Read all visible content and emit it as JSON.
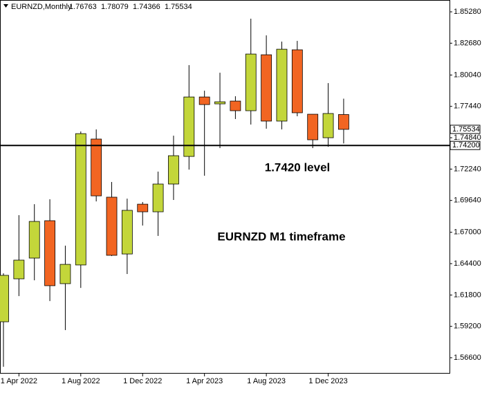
{
  "chart_data": {
    "type": "candlestick",
    "title": "EURNZD,Monthly",
    "categories": [
      null,
      "1 Apr 2022",
      null,
      null,
      null,
      "1 Aug 2022",
      null,
      null,
      null,
      "1 Dec 2022",
      null,
      null,
      null,
      "1 Apr 2023",
      null,
      null,
      null,
      "1 Aug 2023",
      null,
      null,
      null,
      "1 Dec 2023",
      null
    ],
    "open": [
      1.5958,
      1.6314,
      1.6486,
      1.6796,
      1.6274,
      1.6429,
      1.7473,
      1.6991,
      1.652,
      1.6933,
      1.687,
      1.71,
      1.7329,
      1.7822,
      1.7765,
      1.7788,
      1.7708,
      1.8172,
      1.7622,
      1.8213,
      1.7679,
      1.7484,
      1.76763
    ],
    "high": [
      1.636,
      1.6842,
      1.6933,
      1.6974,
      1.6589,
      1.7536,
      1.7553,
      1.7117,
      1.6979,
      1.6951,
      1.7203,
      1.7501,
      1.8086,
      1.7874,
      1.8023,
      1.7828,
      1.8471,
      1.8333,
      1.8281,
      1.8287,
      1.7679,
      1.7937,
      1.78079
    ],
    "low": [
      1.5585,
      1.6171,
      1.6302,
      1.613,
      1.5889,
      1.6239,
      1.6956,
      1.6503,
      1.6354,
      1.6756,
      1.667,
      1.6968,
      1.722,
      1.7169,
      1.7398,
      1.7639,
      1.7593,
      1.7559,
      1.7553,
      1.7662,
      1.7398,
      1.7409,
      1.74366
    ],
    "close": [
      1.6343,
      1.6469,
      1.679,
      1.6257,
      1.6434,
      1.7518,
      1.7002,
      1.6509,
      1.6882,
      1.687,
      1.71,
      1.7335,
      1.7822,
      1.7759,
      1.7782,
      1.7708,
      1.8178,
      1.7622,
      1.8218,
      1.7691,
      1.7467,
      1.7685,
      1.75534
    ],
    "up_color": "#c3d63a",
    "down_color": "#f26522",
    "ylim": [
      1.5528,
      1.8626
    ],
    "yticks": [
      {
        "value": 1.8528,
        "label": "1.85280"
      },
      {
        "value": 1.8268,
        "label": "1.82680"
      },
      {
        "value": 1.8004,
        "label": "1.80040"
      },
      {
        "value": 1.7744,
        "label": "1.77440"
      },
      {
        "value": 1.7484,
        "label": "1.74840"
      },
      {
        "value": 1.7224,
        "label": "1.72240"
      },
      {
        "value": 1.6964,
        "label": "1.69640"
      },
      {
        "value": 1.67,
        "label": "1.67000"
      },
      {
        "value": 1.644,
        "label": "1.64400"
      },
      {
        "value": 1.618,
        "label": "1.61800"
      },
      {
        "value": 1.592,
        "label": "1.59200"
      },
      {
        "value": 1.566,
        "label": "1.56600"
      }
    ],
    "level": {
      "value": 1.742,
      "label": "1.74200"
    },
    "annotations": [
      "1.7420 level",
      "EURNZD M1 timeframe"
    ]
  }
}
